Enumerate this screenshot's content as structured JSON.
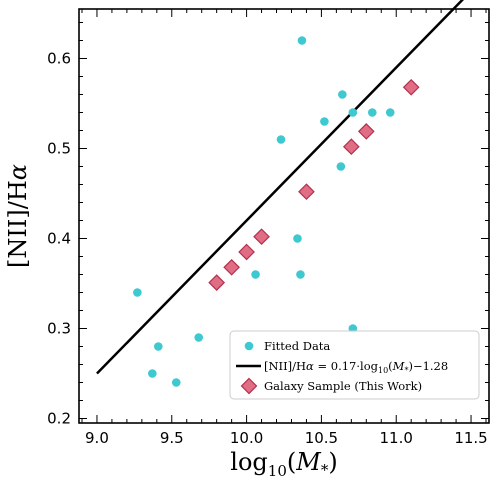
{
  "chart_data": {
    "type": "scatter",
    "xlabel": "log10(M*)",
    "ylabel": "[NII]/Hα",
    "xlim": [
      8.88,
      11.62
    ],
    "ylim": [
      0.195,
      0.655
    ],
    "x_ticks": [
      "9.0",
      "9.5",
      "10.0",
      "10.5",
      "11.0",
      "11.5"
    ],
    "y_ticks": [
      "0.2",
      "0.3",
      "0.4",
      "0.5",
      "0.6"
    ],
    "grid": false,
    "legend_position": "lower-right",
    "colors": {
      "fitted": "#3ec8cf",
      "sample_fill": "#d9536f",
      "sample_stroke": "#b5304d",
      "fit_line": "#000000"
    },
    "series": [
      {
        "name": "Fitted Data",
        "kind": "points",
        "x": [
          9.27,
          9.37,
          9.41,
          9.53,
          9.68,
          10.06,
          10.23,
          10.34,
          10.36,
          10.37,
          10.52,
          10.63,
          10.64,
          10.71,
          10.71,
          10.84,
          10.96
        ],
        "y": [
          0.34,
          0.25,
          0.28,
          0.24,
          0.29,
          0.36,
          0.51,
          0.4,
          0.36,
          0.62,
          0.53,
          0.48,
          0.56,
          0.3,
          0.54,
          0.54,
          0.54
        ]
      },
      {
        "name": "[NII]/Hα = 0.17·log10(M*)−1.28",
        "kind": "line",
        "slope": 0.17,
        "intercept": -1.28,
        "x_range": [
          9.0,
          11.5
        ]
      },
      {
        "name": "Galaxy Sample (This Work)",
        "kind": "diamonds",
        "x": [
          9.8,
          9.9,
          10.0,
          10.1,
          10.4,
          10.7,
          10.8,
          11.1
        ],
        "y": [
          0.351,
          0.368,
          0.385,
          0.402,
          0.452,
          0.502,
          0.519,
          0.568
        ]
      }
    ]
  }
}
